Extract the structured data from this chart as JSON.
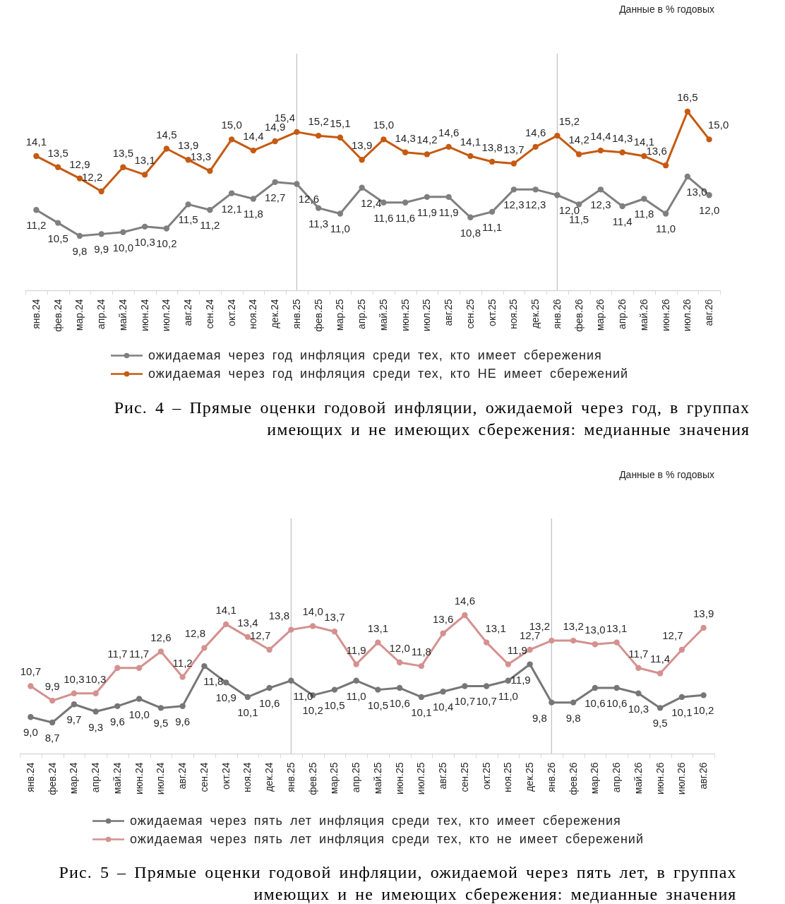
{
  "chart_data": [
    {
      "type": "line",
      "title": "Рис. 4 – Прямые оценки годовой инфляции, ожидаемой через год, в группах имеющих и не имеющих сбережения: медианные значения",
      "annotations": [
        "Данные в % годовых"
      ],
      "categories": [
        "янв.24",
        "фев.24",
        "мар.24",
        "апр.24",
        "май.24",
        "июн.24",
        "июл.24",
        "авг.24",
        "сен.24",
        "окт.24",
        "ноя.24",
        "дек.24",
        "янв.25",
        "фев.25",
        "мар.25",
        "апр.25",
        "май.25",
        "июн.25",
        "июл.25",
        "авг.25",
        "сен.25",
        "окт.25",
        "ноя.25",
        "дек.25",
        "янв.26",
        "фев.26",
        "мар.26",
        "апр.26",
        "май.26",
        "июн.26",
        "июл.26",
        "авг.26"
      ],
      "series": [
        {
          "name": "ожидаемая через год инфляция среди тех, кто имеет сбережения",
          "color": "#7f7f7f",
          "values": [
            11.2,
            10.5,
            9.8,
            9.9,
            10.0,
            10.3,
            10.2,
            11.5,
            11.2,
            12.1,
            11.8,
            12.7,
            12.6,
            11.3,
            11.0,
            12.4,
            11.6,
            11.6,
            11.9,
            11.9,
            10.8,
            11.1,
            12.3,
            12.3,
            12.0,
            11.5,
            12.3,
            11.4,
            11.8,
            11.0,
            13.0,
            12.0
          ],
          "value_labels": [
            "11,2",
            "10,5",
            "9,8",
            "9,9",
            "10,0",
            "10,3",
            "10,2",
            "11,5",
            "11,2",
            "12,1",
            "11,8",
            "12,7",
            "12,6",
            "11,3",
            "11,0",
            "12,4",
            "11,6",
            "11,6",
            "11,9",
            "11,9",
            "10,8",
            "11,1",
            "12,3",
            "12,3",
            "12,0",
            "11,5",
            "12,3",
            "11,4",
            "11,8",
            "11,0",
            "13,0",
            "12,0"
          ]
        },
        {
          "name": "ожидаемая через год инфляция среди тех, кто НЕ имеет сбережений",
          "color": "#c55a11",
          "values": [
            14.1,
            13.5,
            12.9,
            12.2,
            13.5,
            13.1,
            14.5,
            13.9,
            13.3,
            15.0,
            14.4,
            14.9,
            15.4,
            15.2,
            15.1,
            13.9,
            15.0,
            14.3,
            14.2,
            14.6,
            14.1,
            13.8,
            13.7,
            14.6,
            15.2,
            14.2,
            14.4,
            14.3,
            14.1,
            13.6,
            16.5,
            15.0
          ],
          "value_labels": [
            "14,1",
            "13,5",
            "12,9",
            "12,2",
            "13,5",
            "13,1",
            "14,5",
            "13,9",
            "13,3",
            "15,0",
            "14,4",
            "14,9",
            "15,4",
            "15,2",
            "15,1",
            "13,9",
            "15,0",
            "14,3",
            "14,2",
            "14,6",
            "14,1",
            "13,8",
            "13,7",
            "14,6",
            "15,2",
            "14,2",
            "14,4",
            "14,3",
            "14,1",
            "13,6",
            "16,5",
            "15,0"
          ]
        }
      ],
      "tick_labels": "x",
      "ref_lines": [
        {
          "axis": "x",
          "value": "янв.25",
          "color": "#bfbfbf"
        },
        {
          "axis": "x",
          "value": "янв.26",
          "color": "#bfbfbf"
        }
      ],
      "legend": "bottom",
      "marker": "circle",
      "line_style": "solid"
    },
    {
      "type": "line",
      "title": "Рис. 5 – Прямые оценки годовой инфляции, ожидаемой через пять лет, в группах имеющих и не имеющих сбережения: медианные значения",
      "annotations": [
        "Данные в % годовых"
      ],
      "categories": [
        "янв.24",
        "фев.24",
        "мар.24",
        "апр.24",
        "май.24",
        "июн.24",
        "июл.24",
        "авг.24",
        "сен.24",
        "окт.24",
        "ноя.24",
        "дек.24",
        "янв.25",
        "фев.25",
        "мар.25",
        "апр.25",
        "май.25",
        "июн.25",
        "июл.25",
        "авг.25",
        "сен.25",
        "окт.25",
        "ноя.25",
        "дек.25",
        "янв.26",
        "фев.26",
        "мар.26",
        "апр.26",
        "май.26",
        "июн.26",
        "июл.26",
        "авг.26"
      ],
      "series": [
        {
          "name": "ожидаемая через пять лет инфляция среди тех, кто имеет сбережения",
          "color": "#767676",
          "values": [
            9.0,
            8.7,
            9.7,
            9.3,
            9.6,
            10.0,
            9.5,
            9.6,
            11.8,
            10.9,
            10.1,
            10.6,
            11.0,
            10.2,
            10.5,
            11.0,
            10.5,
            10.6,
            10.1,
            10.4,
            10.7,
            10.7,
            11.0,
            11.9,
            9.8,
            9.8,
            10.6,
            10.6,
            10.3,
            9.5,
            10.1,
            10.2
          ],
          "value_labels": [
            "9,0",
            "8,7",
            "9,7",
            "9,3",
            "9,6",
            "10,0",
            "9,5",
            "9,6",
            "11,8",
            "10,9",
            "10,1",
            "10,6",
            "11,0",
            "10,2",
            "10,5",
            "11,0",
            "10,5",
            "10,6",
            "10,1",
            "10,4",
            "10,7",
            "10,7",
            "11,0",
            "11,9",
            "9,8",
            "9,8",
            "10,6",
            "10,6",
            "10,3",
            "9,5",
            "10,1",
            "10,2"
          ]
        },
        {
          "name": "ожидаемая через пять лет инфляция среди тех, кто не имеет сбережений",
          "color": "#d4918f",
          "values": [
            10.7,
            9.9,
            10.3,
            10.3,
            11.7,
            11.7,
            12.6,
            11.2,
            12.8,
            14.1,
            13.4,
            12.7,
            13.8,
            14.0,
            13.7,
            11.9,
            13.1,
            12.0,
            11.8,
            13.6,
            14.6,
            13.1,
            11.9,
            12.7,
            13.2,
            13.2,
            13.0,
            13.1,
            11.7,
            11.4,
            12.7,
            13.9
          ],
          "value_labels": [
            "10,7",
            "9,9",
            "10,3",
            "10,3",
            "11,7",
            "11,7",
            "12,6",
            "11,2",
            "12,8",
            "14,1",
            "13,4",
            "12,7",
            "13,8",
            "14,0",
            "13,7",
            "11,9",
            "13,1",
            "12,0",
            "11,8",
            "13,6",
            "14,6",
            "13,1",
            "11,9",
            "12,7",
            "13,2",
            "13,2",
            "13,0",
            "13,1",
            "11,7",
            "11,4",
            "12,7",
            "13,9"
          ]
        }
      ],
      "tick_labels": "x",
      "ref_lines": [
        {
          "axis": "x",
          "value": "янв.25",
          "color": "#bfbfbf"
        },
        {
          "axis": "x",
          "value": "янв.26",
          "color": "#bfbfbf"
        }
      ],
      "legend": "bottom",
      "marker": "circle",
      "line_style": "solid"
    }
  ]
}
